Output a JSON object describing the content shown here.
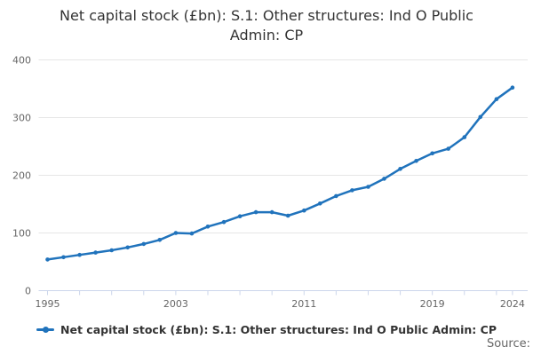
{
  "title": {
    "text": "Net capital stock (£bn): S.1: Other structures: Ind O Public Admin: CP",
    "lines": [
      "Net capital stock (£bn): S.1: Other structures: Ind O Public",
      "Admin: CP"
    ]
  },
  "legend": {
    "label": "Net capital stock (£bn): S.1: Other structures: Ind O Public Admin: CP"
  },
  "source_label": "Source:",
  "colors": {
    "line": "#2073bc",
    "grid": "#e6e6e6",
    "axis": "#ccd6eb",
    "tick_label": "#666666",
    "title": "#333333",
    "legend_text": "#333333"
  },
  "chart_data": {
    "type": "line",
    "title": "Net capital stock (£bn): S.1: Other structures: Ind O Public Admin: CP",
    "xlabel": "",
    "ylabel": "",
    "x": [
      1995,
      1996,
      1997,
      1998,
      1999,
      2000,
      2001,
      2002,
      2003,
      2004,
      2005,
      2006,
      2007,
      2008,
      2009,
      2010,
      2011,
      2012,
      2013,
      2014,
      2015,
      2016,
      2017,
      2018,
      2019,
      2020,
      2021,
      2022,
      2023,
      2024
    ],
    "values": [
      54,
      58,
      62,
      66,
      70,
      75,
      81,
      88,
      100,
      99,
      111,
      119,
      129,
      136,
      136,
      130,
      139,
      151,
      164,
      174,
      180,
      194,
      211,
      225,
      238,
      246,
      266,
      301,
      332,
      352
    ],
    "ylim": [
      0,
      400
    ],
    "yticks": [
      0,
      100,
      200,
      300,
      400
    ],
    "x_tick_years": [
      1995,
      1997,
      1999,
      2001,
      2003,
      2005,
      2007,
      2009,
      2011,
      2013,
      2015,
      2017,
      2019,
      2021,
      2023,
      2024
    ],
    "x_label_years": [
      1995,
      2003,
      2011,
      2019,
      2024
    ],
    "grid": "horizontal-only",
    "legend_position": "bottom",
    "marker": "circle"
  }
}
